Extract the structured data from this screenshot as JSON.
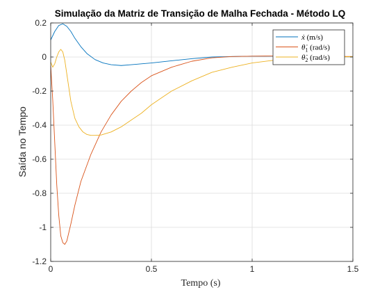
{
  "chart_data": {
    "type": "line",
    "title": "Simulação da Matriz de Transição de Malha Fechada - Método LQ",
    "xlabel": "Tempo (s)",
    "ylabel": "Saída no Tempo",
    "xlim": [
      0,
      1.5
    ],
    "ylim": [
      -1.2,
      0.2
    ],
    "x_ticks": [
      0,
      0.5,
      1,
      1.5
    ],
    "x_tick_labels": [
      "0",
      "0.5",
      "1",
      "1.5"
    ],
    "y_ticks": [
      0.2,
      0,
      -0.2,
      -0.4,
      -0.6,
      -0.8,
      -1,
      -1.2
    ],
    "y_tick_labels": [
      "0.2",
      "0",
      "-0.2",
      "-0.4",
      "-0.6",
      "-0.8",
      "-1",
      "-1.2"
    ],
    "grid": true,
    "legend_position": "top-right",
    "series": [
      {
        "name": "x (m/s)",
        "legend_symbol": "ẋ",
        "legend_unit": "(m/s)",
        "color": "#0072BD",
        "points": [
          [
            0,
            0.1
          ],
          [
            0.02,
            0.15
          ],
          [
            0.04,
            0.185
          ],
          [
            0.06,
            0.195
          ],
          [
            0.08,
            0.18
          ],
          [
            0.1,
            0.15
          ],
          [
            0.12,
            0.11
          ],
          [
            0.15,
            0.06
          ],
          [
            0.18,
            0.02
          ],
          [
            0.22,
            -0.015
          ],
          [
            0.26,
            -0.035
          ],
          [
            0.3,
            -0.045
          ],
          [
            0.35,
            -0.05
          ],
          [
            0.4,
            -0.045
          ],
          [
            0.5,
            -0.035
          ],
          [
            0.6,
            -0.022
          ],
          [
            0.7,
            -0.01
          ],
          [
            0.8,
            0.0
          ],
          [
            0.9,
            0.003
          ],
          [
            1.0,
            0.005
          ],
          [
            1.1,
            0.005
          ],
          [
            1.2,
            0.004
          ],
          [
            1.3,
            0.003
          ],
          [
            1.4,
            0.002
          ],
          [
            1.5,
            0.001
          ]
        ]
      },
      {
        "name": "θ1 (rad/s)",
        "legend_symbol": "θ̇",
        "legend_sub": "1",
        "legend_unit": "(rad/s)",
        "color": "#D95319",
        "points": [
          [
            0,
            -0.05
          ],
          [
            0.01,
            -0.25
          ],
          [
            0.02,
            -0.5
          ],
          [
            0.03,
            -0.75
          ],
          [
            0.04,
            -0.93
          ],
          [
            0.05,
            -1.05
          ],
          [
            0.06,
            -1.09
          ],
          [
            0.07,
            -1.1
          ],
          [
            0.08,
            -1.08
          ],
          [
            0.1,
            -0.98
          ],
          [
            0.12,
            -0.87
          ],
          [
            0.15,
            -0.73
          ],
          [
            0.2,
            -0.57
          ],
          [
            0.25,
            -0.44
          ],
          [
            0.3,
            -0.34
          ],
          [
            0.35,
            -0.26
          ],
          [
            0.4,
            -0.2
          ],
          [
            0.45,
            -0.15
          ],
          [
            0.5,
            -0.11
          ],
          [
            0.6,
            -0.06
          ],
          [
            0.7,
            -0.025
          ],
          [
            0.8,
            -0.005
          ],
          [
            0.9,
            0.003
          ],
          [
            1.0,
            0.005
          ],
          [
            1.1,
            0.006
          ],
          [
            1.2,
            0.006
          ],
          [
            1.3,
            0.005
          ],
          [
            1.4,
            0.004
          ],
          [
            1.5,
            0.003
          ]
        ]
      },
      {
        "name": "θ2 (rad/s)",
        "legend_symbol": "θ̇",
        "legend_sub": "2",
        "legend_unit": "(rad/s)",
        "color": "#EDB120",
        "points": [
          [
            0,
            -0.03
          ],
          [
            0.01,
            -0.06
          ],
          [
            0.02,
            -0.04
          ],
          [
            0.03,
            0.0
          ],
          [
            0.04,
            0.03
          ],
          [
            0.05,
            0.045
          ],
          [
            0.06,
            0.03
          ],
          [
            0.07,
            -0.02
          ],
          [
            0.08,
            -0.1
          ],
          [
            0.09,
            -0.18
          ],
          [
            0.1,
            -0.26
          ],
          [
            0.12,
            -0.36
          ],
          [
            0.14,
            -0.41
          ],
          [
            0.16,
            -0.44
          ],
          [
            0.18,
            -0.455
          ],
          [
            0.2,
            -0.46
          ],
          [
            0.22,
            -0.46
          ],
          [
            0.25,
            -0.458
          ],
          [
            0.3,
            -0.44
          ],
          [
            0.35,
            -0.41
          ],
          [
            0.4,
            -0.37
          ],
          [
            0.45,
            -0.33
          ],
          [
            0.5,
            -0.28
          ],
          [
            0.55,
            -0.24
          ],
          [
            0.6,
            -0.2
          ],
          [
            0.7,
            -0.14
          ],
          [
            0.8,
            -0.09
          ],
          [
            0.9,
            -0.06
          ],
          [
            1.0,
            -0.035
          ],
          [
            1.1,
            -0.02
          ],
          [
            1.2,
            -0.01
          ],
          [
            1.3,
            -0.003
          ],
          [
            1.4,
            0.0
          ],
          [
            1.5,
            0.002
          ]
        ]
      }
    ]
  }
}
